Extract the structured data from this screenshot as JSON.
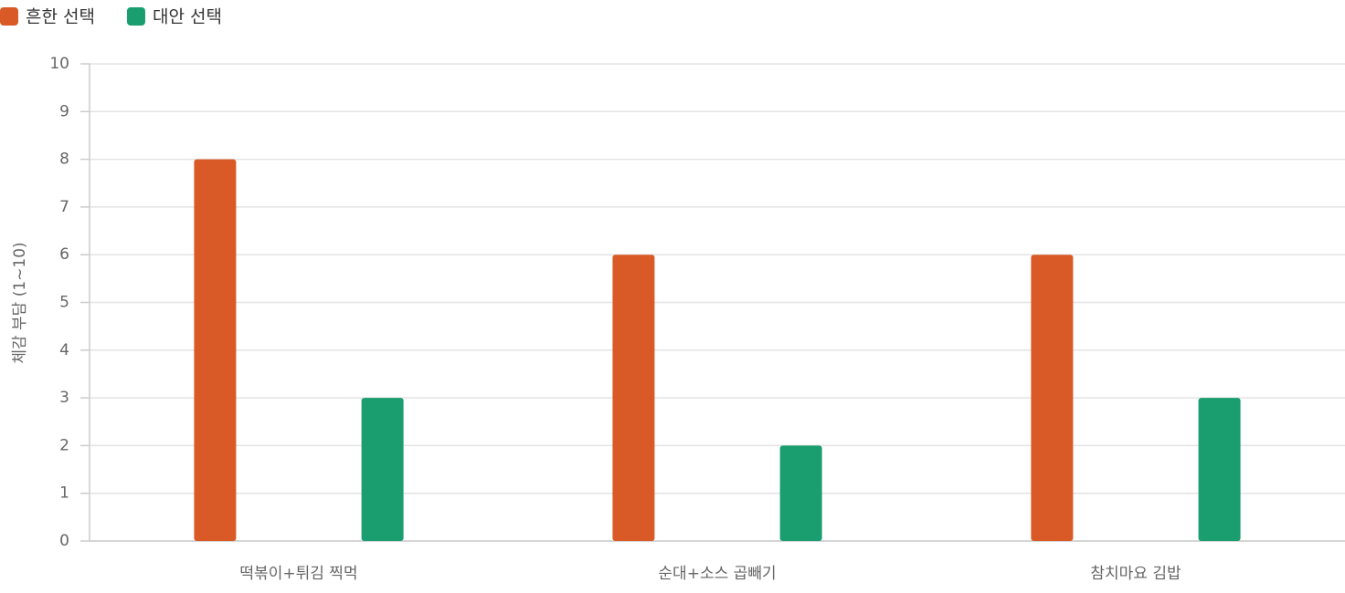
{
  "chart_data": {
    "type": "bar",
    "categories": [
      "떡볶이+튀김 찍먹",
      "순대+소스 곱빼기",
      "참치마요 김밥"
    ],
    "series": [
      {
        "name": "흔한 선택",
        "color": "#d95a26",
        "values": [
          8,
          6,
          6
        ]
      },
      {
        "name": "대안 선택",
        "color": "#1a9e6f",
        "values": [
          3,
          2,
          3
        ]
      }
    ],
    "y_label": "체감 부담 (1~10)",
    "ylim": [
      0,
      10
    ],
    "yticks": [
      0,
      1,
      2,
      3,
      4,
      5,
      6,
      7,
      8,
      9,
      10
    ],
    "grid": true,
    "legend": "top-left"
  }
}
